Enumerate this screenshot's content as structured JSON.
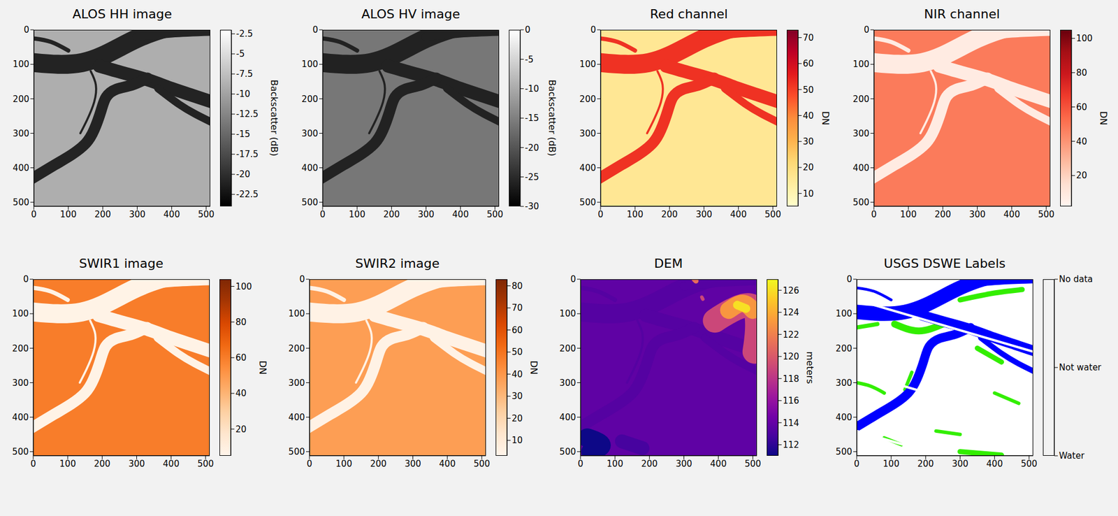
{
  "chart_data": [
    {
      "type": "image",
      "title": "ALOS HH image",
      "xlim": [
        0,
        512
      ],
      "ylim": [
        512,
        0
      ],
      "xticks": [
        0,
        100,
        200,
        300,
        400,
        500
      ],
      "yticks": [
        0,
        100,
        200,
        300,
        400,
        500
      ],
      "land_value": -9,
      "water_value": -21,
      "colorbar": {
        "label": "Backscatter (dB)",
        "range": [
          -24,
          -2
        ],
        "ticks": [
          -2.5,
          -5,
          -7.5,
          -10,
          -12.5,
          -15,
          -17.5,
          -20,
          -22.5
        ],
        "colors": [
          "#000000",
          "#ffffff"
        ]
      }
    },
    {
      "type": "image",
      "title": "ALOS HV image",
      "xlim": [
        0,
        512
      ],
      "ylim": [
        512,
        0
      ],
      "xticks": [
        0,
        100,
        200,
        300,
        400,
        500
      ],
      "yticks": [
        0,
        100,
        200,
        300,
        400,
        500
      ],
      "land_value": -16,
      "water_value": -26,
      "colorbar": {
        "label": "Backscatter (dB)",
        "range": [
          -30,
          0
        ],
        "ticks": [
          0,
          -5,
          -10,
          -15,
          -20,
          -25,
          -30
        ],
        "colors": [
          "#000000",
          "#ffffff"
        ]
      }
    },
    {
      "type": "image",
      "title": "Red channel",
      "xlim": [
        0,
        512
      ],
      "ylim": [
        512,
        0
      ],
      "xticks": [
        0,
        100,
        200,
        300,
        400,
        500
      ],
      "yticks": [
        0,
        100,
        200,
        300,
        400,
        500
      ],
      "land_value": 16,
      "water_value": 52,
      "colorbar": {
        "label": "DN",
        "range": [
          5,
          73
        ],
        "ticks": [
          10,
          20,
          30,
          40,
          50,
          60,
          70
        ],
        "colors": [
          "#ffffcc",
          "#ffeda0",
          "#fed976",
          "#feb24c",
          "#fd8d3c",
          "#fc4e2a",
          "#e31a1c",
          "#bd0026",
          "#800026"
        ]
      }
    },
    {
      "type": "image",
      "title": "NIR channel",
      "xlim": [
        0,
        512
      ],
      "ylim": [
        512,
        0
      ],
      "xticks": [
        0,
        100,
        200,
        300,
        400,
        500
      ],
      "yticks": [
        0,
        100,
        200,
        300,
        400,
        500
      ],
      "land_value": 48,
      "water_value": 8,
      "colorbar": {
        "label": "DN",
        "range": [
          2,
          105
        ],
        "ticks": [
          20,
          40,
          60,
          80,
          100
        ],
        "colors": [
          "#fff5f0",
          "#fee0d2",
          "#fcbba1",
          "#fc9272",
          "#fb6a4a",
          "#ef3b2c",
          "#cb181d",
          "#a50f15",
          "#67000d"
        ]
      }
    },
    {
      "type": "image",
      "title": "SWIR1 image",
      "xlim": [
        0,
        512
      ],
      "ylim": [
        512,
        0
      ],
      "xticks": [
        0,
        100,
        200,
        300,
        400,
        500
      ],
      "yticks": [
        0,
        100,
        200,
        300,
        400,
        500
      ],
      "land_value": 60,
      "water_value": 7,
      "colorbar": {
        "label": "DN",
        "range": [
          5,
          104
        ],
        "ticks": [
          20,
          40,
          60,
          80,
          100
        ],
        "colors": [
          "#fff5eb",
          "#fee6ce",
          "#fdd0a2",
          "#fdae6b",
          "#fd8d3c",
          "#f16913",
          "#d94801",
          "#a63603",
          "#7f2704"
        ]
      }
    },
    {
      "type": "image",
      "title": "SWIR2 image",
      "xlim": [
        0,
        512
      ],
      "ylim": [
        512,
        0
      ],
      "xticks": [
        0,
        100,
        200,
        300,
        400,
        500
      ],
      "yticks": [
        0,
        100,
        200,
        300,
        400,
        500
      ],
      "land_value": 38,
      "water_value": 5,
      "colorbar": {
        "label": "DN",
        "range": [
          3,
          83
        ],
        "ticks": [
          10,
          20,
          30,
          40,
          50,
          60,
          70,
          80
        ],
        "colors": [
          "#fff5eb",
          "#fee6ce",
          "#fdd0a2",
          "#fdae6b",
          "#fd8d3c",
          "#f16913",
          "#d94801",
          "#a63603",
          "#7f2704"
        ]
      }
    },
    {
      "type": "image",
      "title": "DEM",
      "xlim": [
        0,
        512
      ],
      "ylim": [
        512,
        0
      ],
      "xticks": [
        0,
        100,
        200,
        300,
        400,
        500
      ],
      "yticks": [
        0,
        100,
        200,
        300,
        400,
        500
      ],
      "land_value": 113.8,
      "water_value": 113.4,
      "colorbar": {
        "label": "meters",
        "range": [
          111,
          127
        ],
        "ticks": [
          112,
          114,
          116,
          118,
          120,
          122,
          124,
          126
        ],
        "colors": [
          "#0d0887",
          "#46039f",
          "#7201a8",
          "#9c179e",
          "#bd3786",
          "#d8576b",
          "#ed7953",
          "#fb9f3a",
          "#fdca26",
          "#f0f921"
        ]
      },
      "regions": [
        {
          "points": [
            [
              390,
              120
            ],
            [
              440,
              90
            ],
            [
              500,
              80
            ],
            [
              512,
              150
            ],
            [
              505,
              210
            ]
          ],
          "width": 70,
          "value": 119
        },
        {
          "points": [
            [
              430,
              90
            ],
            [
              470,
              70
            ],
            [
              500,
              90
            ]
          ],
          "width": 50,
          "value": 123
        },
        {
          "points": [
            [
              455,
              75
            ],
            [
              480,
              85
            ]
          ],
          "width": 25,
          "value": 126
        },
        {
          "points": [
            [
              330,
              0
            ],
            [
              335,
              5
            ]
          ],
          "width": 15,
          "value": 121
        },
        {
          "points": [
            [
              352,
              52
            ],
            [
              355,
              58
            ]
          ],
          "width": 10,
          "value": 119
        },
        {
          "points": [
            [
              20,
              460
            ],
            [
              60,
              480
            ],
            [
              30,
              500
            ]
          ],
          "width": 55,
          "value": 111
        },
        {
          "points": [
            [
              120,
              470
            ],
            [
              180,
              490
            ]
          ],
          "width": 40,
          "value": 112.8
        }
      ]
    },
    {
      "type": "classes",
      "title": "USGS DSWE Labels",
      "xlim": [
        0,
        512
      ],
      "ylim": [
        512,
        0
      ],
      "xticks": [
        0,
        100,
        200,
        300,
        400,
        500
      ],
      "yticks": [
        0,
        100,
        200,
        300,
        400,
        500
      ],
      "background_class": "No data",
      "classes": [
        {
          "label": "Water",
          "color": "#0000ff",
          "range": [
            0,
            1
          ]
        },
        {
          "label": "Not water",
          "color": "#33ee00",
          "range": [
            1,
            2
          ]
        },
        {
          "label": "No data",
          "color": "#ffffff",
          "range": [
            2,
            3
          ]
        }
      ],
      "colorbar": {
        "range": [
          0,
          3
        ],
        "ticks": [
          {
            "value": 0,
            "label": "Water"
          },
          {
            "value": 1.5,
            "label": "Not water"
          },
          {
            "value": 3,
            "label": "No data"
          }
        ]
      },
      "features": [
        {
          "class": "Not water",
          "points": [
            [
              110,
              130
            ],
            [
              180,
              150
            ],
            [
              250,
              130
            ]
          ],
          "width": 20
        },
        {
          "class": "Not water",
          "points": [
            [
              300,
              60
            ],
            [
              400,
              40
            ],
            [
              480,
              30
            ]
          ],
          "width": 15
        },
        {
          "class": "Not water",
          "points": [
            [
              350,
              200
            ],
            [
              420,
              240
            ]
          ],
          "width": 15
        },
        {
          "class": "Not water",
          "points": [
            [
              0,
              140
            ],
            [
              60,
              130
            ]
          ],
          "width": 12
        },
        {
          "class": "Not water",
          "points": [
            [
              160,
              270
            ],
            [
              140,
              320
            ]
          ],
          "width": 10
        },
        {
          "class": "Not water",
          "points": [
            [
              0,
              300
            ],
            [
              40,
              310
            ],
            [
              80,
              330
            ]
          ],
          "width": 10
        },
        {
          "class": "Not water",
          "points": [
            [
              230,
              440
            ],
            [
              300,
              450
            ]
          ],
          "width": 10
        },
        {
          "class": "Not water",
          "points": [
            [
              300,
              500
            ],
            [
              420,
              510
            ]
          ],
          "width": 15
        },
        {
          "class": "Not water",
          "points": [
            [
              400,
              330
            ],
            [
              470,
              360
            ]
          ],
          "width": 10
        },
        {
          "class": "Not water",
          "points": [
            [
              80,
              460
            ],
            [
              130,
              480
            ]
          ],
          "width": 10
        },
        {
          "class": "Water",
          "points": [
            [
              0,
              95
            ],
            [
              70,
              100
            ],
            [
              140,
              95
            ],
            [
              200,
              75
            ],
            [
              250,
              50
            ],
            [
              300,
              25
            ],
            [
              350,
              5
            ],
            [
              400,
              -10
            ]
          ],
          "width": 42
        },
        {
          "class": "Water",
          "points": [
            [
              190,
              105
            ],
            [
              260,
              125
            ],
            [
              330,
              145
            ],
            [
              400,
              170
            ],
            [
              460,
              190
            ],
            [
              520,
              210
            ]
          ],
          "width": 30
        },
        {
          "class": "Water",
          "points": [
            [
              360,
              170
            ],
            [
              420,
              215
            ],
            [
              470,
              245
            ],
            [
              520,
              270
            ]
          ],
          "width": 16
        },
        {
          "class": "Water",
          "points": [
            [
              330,
              140
            ],
            [
              285,
              160
            ],
            [
              240,
              172
            ],
            [
              210,
              195
            ],
            [
              195,
              235
            ],
            [
              175,
              290
            ],
            [
              150,
              330
            ],
            [
              110,
              362
            ],
            [
              60,
              392
            ],
            [
              0,
              428
            ],
            [
              -20,
              440
            ]
          ],
          "width": 26
        },
        {
          "class": "Water",
          "points": [
            [
              0,
              25
            ],
            [
              50,
              35
            ],
            [
              100,
              60
            ]
          ],
          "width": 8
        },
        {
          "class": "Water",
          "points": [
            [
              300,
              20
            ],
            [
              400,
              10
            ],
            [
              512,
              5
            ]
          ],
          "width": 14
        },
        {
          "class": "No data",
          "points": [
            [
              0,
              60
            ],
            [
              512,
              210
            ]
          ],
          "width": 7
        },
        {
          "class": "No data",
          "points": [
            [
              0,
              270
            ],
            [
              512,
              420
            ]
          ],
          "width": 7
        },
        {
          "class": "No data",
          "points": [
            [
              0,
              440
            ],
            [
              512,
              590
            ]
          ],
          "width": 7
        }
      ]
    }
  ],
  "scene": {
    "channels": [
      {
        "points": [
          [
            0,
            95
          ],
          [
            70,
            100
          ],
          [
            140,
            95
          ],
          [
            200,
            75
          ],
          [
            250,
            50
          ],
          [
            300,
            25
          ],
          [
            350,
            5
          ],
          [
            400,
            -10
          ]
        ],
        "width": 55
      },
      {
        "points": [
          [
            190,
            105
          ],
          [
            260,
            125
          ],
          [
            330,
            145
          ],
          [
            400,
            170
          ],
          [
            460,
            190
          ],
          [
            520,
            210
          ]
        ],
        "width": 38
      },
      {
        "points": [
          [
            360,
            170
          ],
          [
            420,
            215
          ],
          [
            470,
            245
          ],
          [
            520,
            270
          ]
        ],
        "width": 22
      },
      {
        "points": [
          [
            330,
            140
          ],
          [
            285,
            160
          ],
          [
            240,
            172
          ],
          [
            210,
            195
          ],
          [
            195,
            235
          ],
          [
            175,
            290
          ],
          [
            150,
            330
          ],
          [
            110,
            362
          ],
          [
            60,
            392
          ],
          [
            0,
            428
          ],
          [
            -20,
            440
          ]
        ],
        "width": 32
      },
      {
        "points": [
          [
            165,
            120
          ],
          [
            180,
            160
          ],
          [
            175,
            210
          ],
          [
            155,
            260
          ],
          [
            135,
            300
          ]
        ],
        "width": 6
      },
      {
        "points": [
          [
            0,
            25
          ],
          [
            50,
            35
          ],
          [
            100,
            60
          ]
        ],
        "width": 12
      },
      {
        "points": [
          [
            300,
            20
          ],
          [
            400,
            10
          ],
          [
            512,
            5
          ]
        ],
        "width": 25
      }
    ]
  }
}
